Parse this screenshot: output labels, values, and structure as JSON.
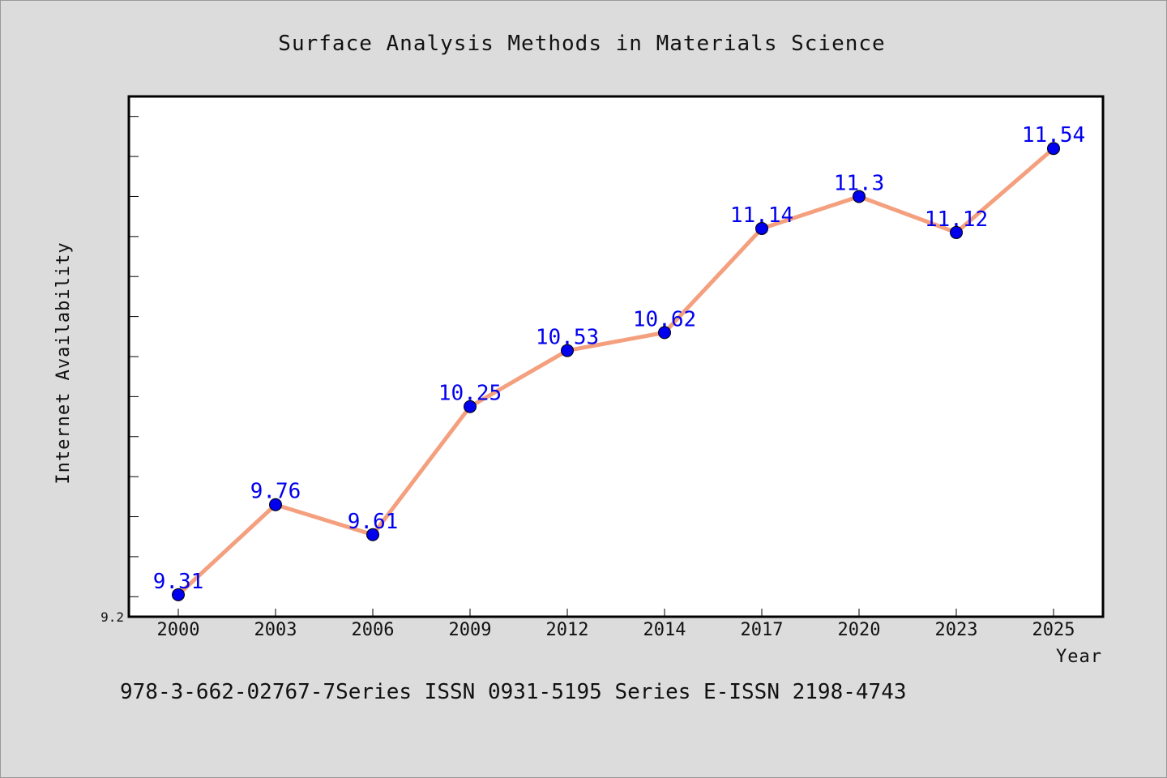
{
  "chart_data": {
    "type": "line",
    "title": "Surface Analysis Methods in Materials Science",
    "xlabel": "Year",
    "ylabel": "Internet Availability",
    "categories": [
      "2000",
      "2003",
      "2006",
      "2009",
      "2012",
      "2014",
      "2017",
      "2020",
      "2023",
      "2025"
    ],
    "series": [
      {
        "values": [
          9.31,
          9.76,
          9.61,
          10.25,
          10.53,
          10.62,
          11.14,
          11.3,
          11.12,
          11.54
        ],
        "labels": [
          "9.31",
          "9.76",
          "9.61",
          "10.25",
          "10.53",
          "10.62",
          "11.14",
          "11.3",
          "11.12",
          "11.54"
        ]
      }
    ],
    "y_tick_labels": [
      "9.2"
    ],
    "ylim": [
      9.2,
      11.8
    ],
    "grid": false,
    "legend": "none",
    "colors": {
      "line": "#f4a07e",
      "marker": "#0000ee",
      "label": "#0000ee",
      "plot_bg": "#ffffff",
      "page_bg": "#dcdcdc"
    }
  },
  "footer_text": "978-3-662-02767-7Series ISSN 0931-5195 Series E-ISSN 2198-4743"
}
